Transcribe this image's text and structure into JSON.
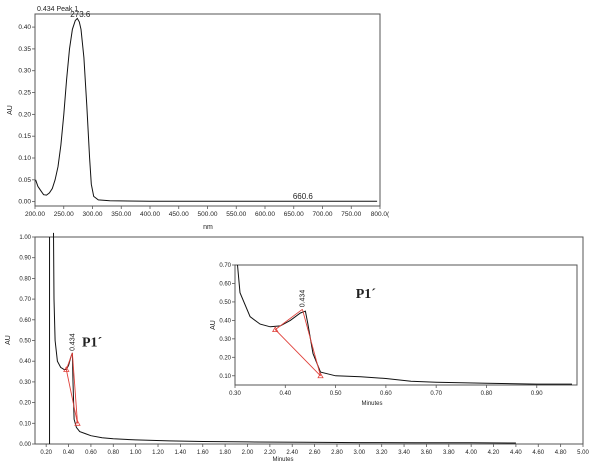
{
  "charts": {
    "spectrum": {
      "type": "line",
      "header": "0.434 Peak 1",
      "xlabel": "nm",
      "ylabel": "AU",
      "xlim": [
        200,
        800
      ],
      "ylim": [
        -0.01,
        0.43
      ],
      "xticks": [
        200,
        250,
        300,
        350,
        400,
        450,
        500,
        550,
        600,
        650,
        700,
        750,
        800
      ],
      "xtick_labels": [
        "200.00",
        "250.00",
        "300.00",
        "350.00",
        "400.00",
        "450.00",
        "500.00",
        "550.00",
        "600.00",
        "650.00",
        "700.00",
        "750.00",
        "800.0("
      ],
      "yticks": [
        0,
        0.05,
        0.1,
        0.15,
        0.2,
        0.25,
        0.3,
        0.35,
        0.4
      ],
      "ytick_labels": [
        "0.00",
        "0.05",
        "0.10",
        "0.15",
        "0.20",
        "0.25",
        "0.30",
        "0.35",
        "0.40"
      ],
      "peak_labels": [
        {
          "text": "273.6",
          "x": 273.6,
          "y": 0.419
        },
        {
          "text": "660.6",
          "x": 660.6,
          "y": 0.001
        }
      ],
      "points": [
        [
          201,
          0.05
        ],
        [
          205,
          0.035
        ],
        [
          210,
          0.025
        ],
        [
          215,
          0.016
        ],
        [
          220,
          0.015
        ],
        [
          225,
          0.02
        ],
        [
          230,
          0.03
        ],
        [
          235,
          0.05
        ],
        [
          240,
          0.08
        ],
        [
          245,
          0.13
        ],
        [
          250,
          0.2
        ],
        [
          255,
          0.28
        ],
        [
          260,
          0.35
        ],
        [
          265,
          0.395
        ],
        [
          270,
          0.415
        ],
        [
          273.6,
          0.42
        ],
        [
          277,
          0.412
        ],
        [
          280,
          0.395
        ],
        [
          285,
          0.33
        ],
        [
          290,
          0.22
        ],
        [
          295,
          0.1
        ],
        [
          298,
          0.04
        ],
        [
          302,
          0.012
        ],
        [
          310,
          0.004
        ],
        [
          330,
          0.002
        ],
        [
          400,
          0.001
        ],
        [
          500,
          0.001
        ],
        [
          600,
          0.001
        ],
        [
          660.6,
          0.001
        ],
        [
          700,
          0.001
        ],
        [
          795,
          0.001
        ]
      ]
    },
    "chromatogram": {
      "type": "line",
      "xlabel": "Minutes",
      "ylabel": "AU",
      "xlim": [
        0.1,
        5.0
      ],
      "ylim": [
        0,
        1.0
      ],
      "xticks": [
        0.2,
        0.4,
        0.6,
        0.8,
        1.0,
        1.2,
        1.4,
        1.6,
        1.8,
        2.0,
        2.2,
        2.4,
        2.6,
        2.8,
        3.0,
        3.2,
        3.4,
        3.6,
        3.8,
        4.0,
        4.2,
        4.4,
        4.6,
        4.8,
        5.0
      ],
      "xtick_labels": [
        "0.20",
        "0.40",
        "0.60",
        "0.80",
        "1.00",
        "1.20",
        "1.40",
        "1.60",
        "1.80",
        "2.00",
        "2.20",
        "2.40",
        "2.60",
        "2.80",
        "3.00",
        "3.20",
        "3.40",
        "3.60",
        "3.80",
        "4.00",
        "4.20",
        "4.40",
        "4.60",
        "4.80",
        "5.00"
      ],
      "yticks": [
        0,
        0.1,
        0.2,
        0.3,
        0.4,
        0.5,
        0.6,
        0.7,
        0.8,
        0.9,
        1.0
      ],
      "ytick_labels": [
        "0.00",
        "0.10",
        "0.20",
        "0.30",
        "0.40",
        "0.50",
        "0.60",
        "0.70",
        "0.80",
        "0.90",
        "1.00"
      ],
      "peak_label": {
        "text": "0.434",
        "x": 0.434,
        "y": 0.44
      },
      "annotation": "P1´",
      "points": [
        [
          0.265,
          1.02
        ],
        [
          0.27,
          0.7
        ],
        [
          0.28,
          0.5
        ],
        [
          0.3,
          0.4
        ],
        [
          0.33,
          0.37
        ],
        [
          0.36,
          0.36
        ],
        [
          0.38,
          0.36
        ],
        [
          0.4,
          0.38
        ],
        [
          0.42,
          0.42
        ],
        [
          0.434,
          0.44
        ],
        [
          0.44,
          0.3
        ],
        [
          0.45,
          0.12
        ],
        [
          0.47,
          0.08
        ],
        [
          0.5,
          0.06
        ],
        [
          0.55,
          0.05
        ],
        [
          0.6,
          0.04
        ],
        [
          0.7,
          0.03
        ],
        [
          0.8,
          0.025
        ],
        [
          1.0,
          0.02
        ],
        [
          1.3,
          0.015
        ],
        [
          1.6,
          0.012
        ],
        [
          2.0,
          0.01
        ],
        [
          2.5,
          0.008
        ],
        [
          3.0,
          0.007
        ],
        [
          3.5,
          0.006
        ],
        [
          4.0,
          0.006
        ],
        [
          4.4,
          0.005
        ]
      ],
      "spike_x": 0.23,
      "marker_points": [
        [
          0.38,
          0.36
        ],
        [
          0.48,
          0.1
        ]
      ],
      "marker_apex": [
        0.434,
        0.44
      ]
    },
    "inset": {
      "type": "line",
      "xlabel": "Minutes",
      "ylabel": "AU",
      "xlim": [
        0.3,
        0.98
      ],
      "ylim": [
        0.05,
        0.7
      ],
      "xticks": [
        0.3,
        0.4,
        0.5,
        0.6,
        0.7,
        0.8,
        0.9
      ],
      "xtick_labels": [
        "0.30",
        "0.40",
        "0.50",
        "0.60",
        "0.70",
        "0.80",
        "0.90"
      ],
      "yticks": [
        0.1,
        0.2,
        0.3,
        0.4,
        0.5,
        0.6,
        0.7
      ],
      "ytick_labels": [
        "0.10",
        "0.20",
        "0.30",
        "0.40",
        "0.50",
        "0.60",
        "0.70"
      ],
      "peak_label": {
        "text": "0.434",
        "x": 0.434,
        "y": 0.46
      },
      "annotation": "P1´",
      "points": [
        [
          0.305,
          0.7
        ],
        [
          0.31,
          0.55
        ],
        [
          0.33,
          0.42
        ],
        [
          0.35,
          0.38
        ],
        [
          0.37,
          0.365
        ],
        [
          0.39,
          0.37
        ],
        [
          0.41,
          0.4
        ],
        [
          0.43,
          0.44
        ],
        [
          0.44,
          0.45
        ],
        [
          0.445,
          0.38
        ],
        [
          0.455,
          0.22
        ],
        [
          0.47,
          0.12
        ],
        [
          0.5,
          0.1
        ],
        [
          0.55,
          0.095
        ],
        [
          0.6,
          0.085
        ],
        [
          0.65,
          0.07
        ],
        [
          0.7,
          0.065
        ],
        [
          0.8,
          0.06
        ],
        [
          0.9,
          0.055
        ],
        [
          0.97,
          0.055
        ]
      ],
      "marker_points": [
        [
          0.38,
          0.35
        ],
        [
          0.47,
          0.1
        ]
      ],
      "marker_apex": [
        0.434,
        0.46
      ]
    }
  }
}
